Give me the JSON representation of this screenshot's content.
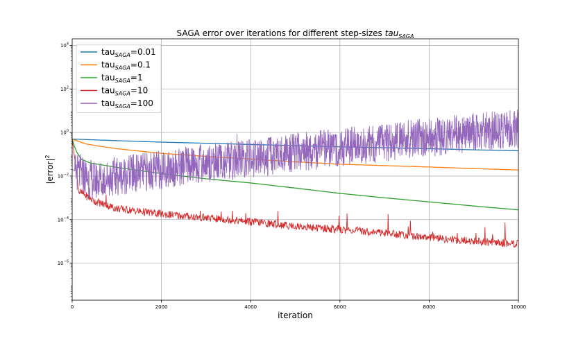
{
  "chart_data": {
    "type": "line",
    "title_text": "SAGA error over iterations for different step-sizes ",
    "title_symbol": "tau",
    "title_symbol_sub": "SAGA",
    "xlabel": "iteration",
    "ylabel_base": "|error|",
    "ylabel_sup": "2",
    "xlim": [
      0,
      10000
    ],
    "ylim_exp": [
      -7.7,
      4.3
    ],
    "yscale": "log",
    "grid": true,
    "legend_position": "top-left",
    "x_ticks": [
      {
        "value": 0,
        "label": "0"
      },
      {
        "value": 2000,
        "label": "2000"
      },
      {
        "value": 4000,
        "label": "4000"
      },
      {
        "value": 6000,
        "label": "6000"
      },
      {
        "value": 8000,
        "label": "8000"
      },
      {
        "value": 10000,
        "label": "10000"
      }
    ],
    "y_ticks": [
      {
        "exp": 4,
        "base": "10",
        "sup": "4"
      },
      {
        "exp": 2,
        "base": "10",
        "sup": "2"
      },
      {
        "exp": 0,
        "base": "10",
        "sup": "0"
      },
      {
        "exp": -2,
        "base": "10",
        "sup": "−2"
      },
      {
        "exp": -4,
        "base": "10",
        "sup": "−4"
      },
      {
        "exp": -6,
        "base": "10",
        "sup": "−6"
      }
    ],
    "series": [
      {
        "legend_base": "tau",
        "legend_sub": "SAGA",
        "legend_value": "=0.01",
        "color": "#1f77b4",
        "points": [
          [
            0,
            0.5
          ],
          [
            1000,
            0.42
          ],
          [
            2000,
            0.36
          ],
          [
            3000,
            0.32
          ],
          [
            4000,
            0.28
          ],
          [
            5000,
            0.25
          ],
          [
            6000,
            0.22
          ],
          [
            7000,
            0.2
          ],
          [
            8000,
            0.18
          ],
          [
            9000,
            0.16
          ],
          [
            10000,
            0.145
          ]
        ]
      },
      {
        "legend_base": "tau",
        "legend_sub": "SAGA",
        "legend_value": "=0.1",
        "color": "#ff7f0e",
        "points": [
          [
            0,
            0.5
          ],
          [
            300,
            0.3
          ],
          [
            700,
            0.22
          ],
          [
            1000,
            0.18
          ],
          [
            2000,
            0.11
          ],
          [
            3000,
            0.08
          ],
          [
            4000,
            0.06
          ],
          [
            5000,
            0.045
          ],
          [
            6000,
            0.035
          ],
          [
            7000,
            0.03
          ],
          [
            8000,
            0.026
          ],
          [
            9000,
            0.022
          ],
          [
            10000,
            0.019
          ]
        ]
      },
      {
        "legend_base": "tau",
        "legend_sub": "SAGA",
        "legend_value": "=1",
        "color": "#2ca02c",
        "points": [
          [
            0,
            0.5
          ],
          [
            80,
            0.15
          ],
          [
            200,
            0.06
          ],
          [
            400,
            0.04
          ],
          [
            1000,
            0.025
          ],
          [
            2000,
            0.013
          ],
          [
            3000,
            0.0075
          ],
          [
            4000,
            0.0048
          ],
          [
            5000,
            0.0028
          ],
          [
            6000,
            0.0016
          ],
          [
            7000,
            0.001
          ],
          [
            8000,
            0.00065
          ],
          [
            9000,
            0.00042
          ],
          [
            10000,
            0.00028
          ]
        ]
      },
      {
        "legend_base": "tau",
        "legend_sub": "SAGA",
        "legend_value": "=10",
        "color": "#d62728",
        "points": [
          [
            0,
            0.5
          ],
          [
            150,
            0.002
          ],
          [
            500,
            0.0007
          ],
          [
            1000,
            0.00032
          ],
          [
            2000,
            0.00018
          ],
          [
            3000,
            0.00012
          ],
          [
            4000,
            8e-05
          ],
          [
            5000,
            5e-05
          ],
          [
            6000,
            3.5e-05
          ],
          [
            7000,
            2.5e-05
          ],
          [
            8000,
            1.5e-05
          ],
          [
            9000,
            1e-05
          ],
          [
            10000,
            8e-06
          ]
        ]
      },
      {
        "legend_base": "tau",
        "legend_sub": "SAGA",
        "legend_value": "=100",
        "color": "#9467bd",
        "points": [
          [
            0,
            0.02
          ],
          [
            500,
            0.006
          ],
          [
            1000,
            0.01
          ],
          [
            2000,
            0.02
          ],
          [
            3000,
            0.04
          ],
          [
            4000,
            0.06
          ],
          [
            5000,
            0.12
          ],
          [
            6000,
            0.2
          ],
          [
            7000,
            0.35
          ],
          [
            8000,
            0.6
          ],
          [
            9000,
            1.0
          ],
          [
            10000,
            1.5
          ]
        ]
      }
    ]
  }
}
